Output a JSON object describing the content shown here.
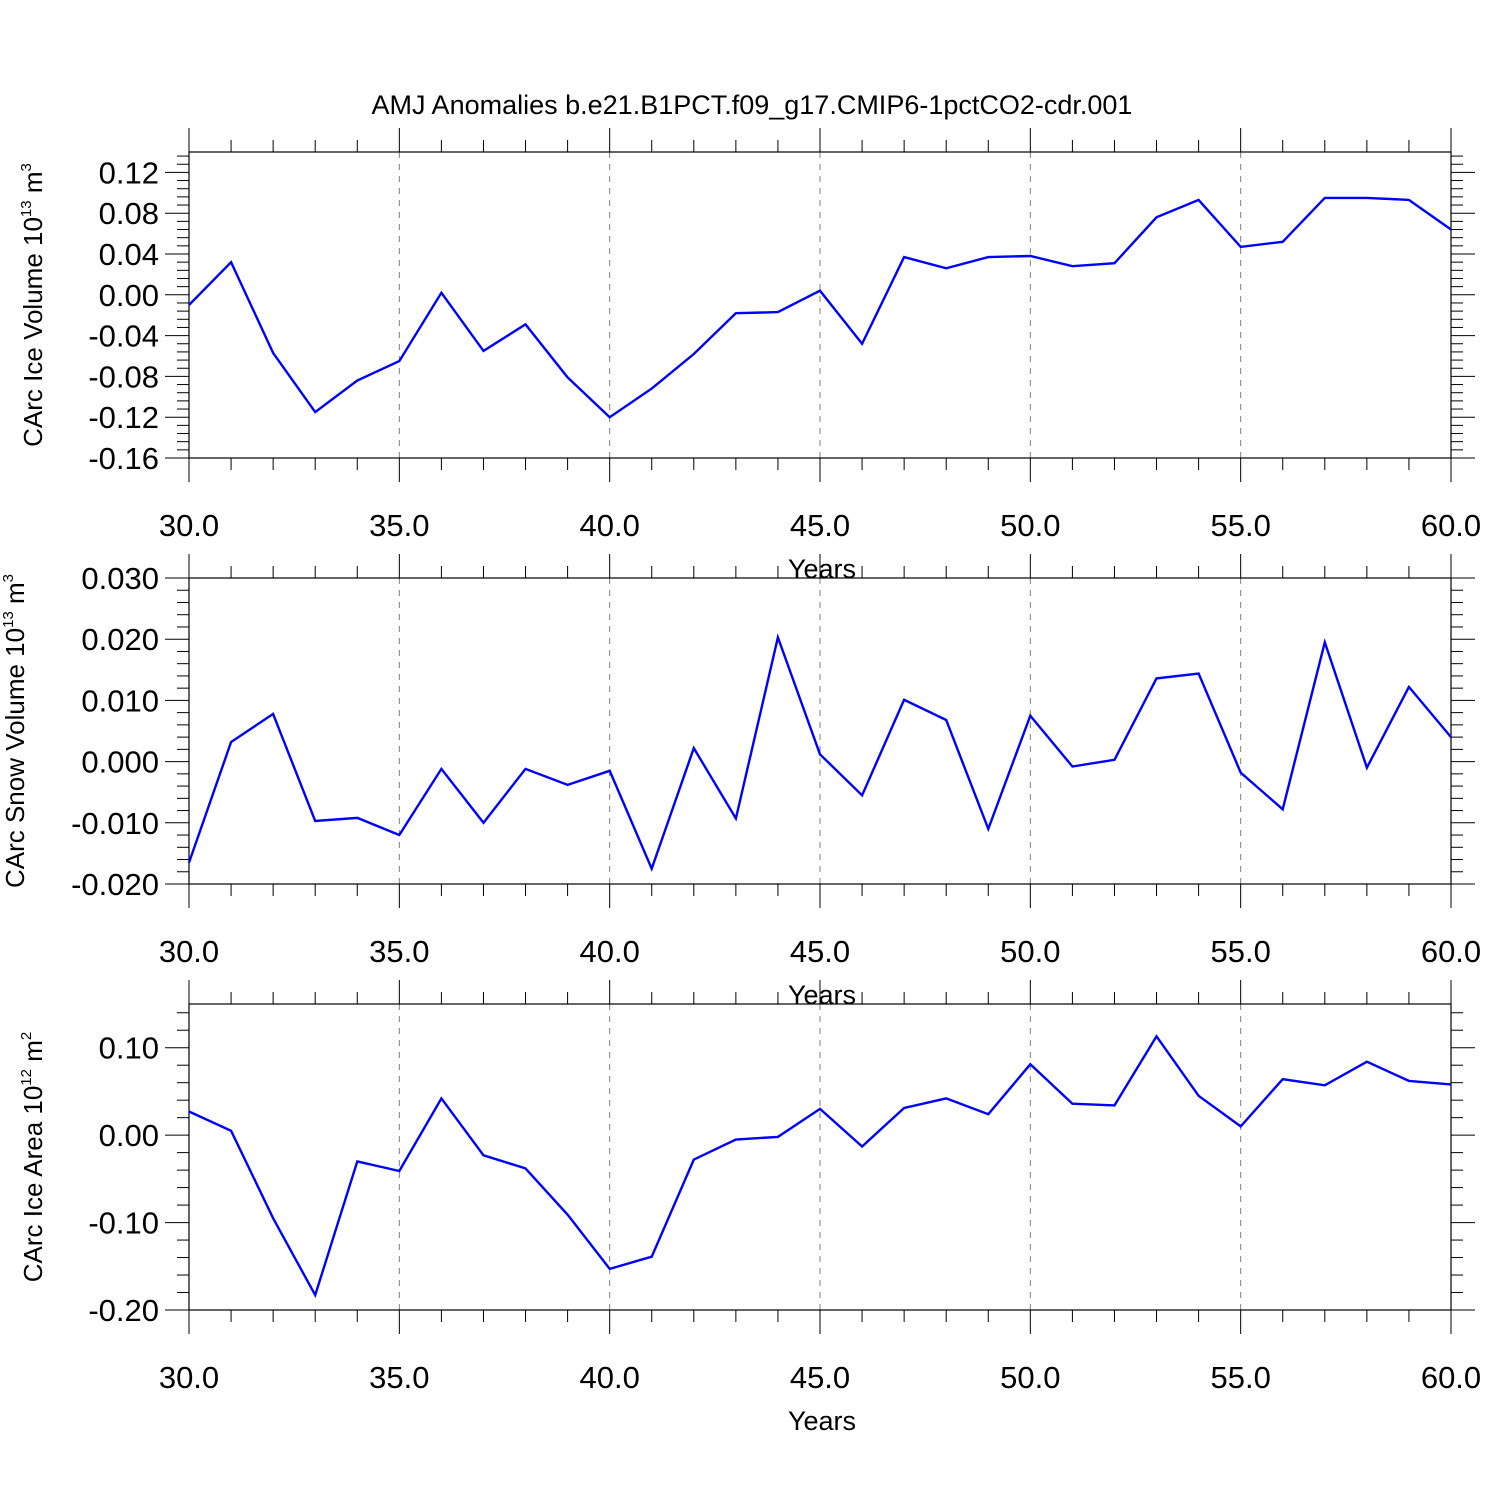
{
  "title": "AMJ Anomalies b.e21.B1PCT.f09_g17.CMIP6-1pctCO2-cdr.001",
  "series_color": "#0000ff",
  "chart_data": [
    {
      "type": "line",
      "ylabel": "CArc Ice Volume 10",
      "ylabel_sup": "13",
      "ylabel_unit": "m",
      "ylabel_unit_sup": "3",
      "xlabel": "Years",
      "xlim": [
        30,
        60
      ],
      "ylim": [
        -0.16,
        0.14
      ],
      "grid": "vertical dashed at major x ticks",
      "xticks": [
        30,
        35,
        40,
        45,
        50,
        55,
        60
      ],
      "xtick_labels": [
        "30.0",
        "35.0",
        "40.0",
        "45.0",
        "50.0",
        "55.0",
        "60.0"
      ],
      "yticks": [
        0.12,
        0.08,
        0.04,
        0.0,
        -0.04,
        -0.08,
        -0.12,
        -0.16
      ],
      "ytick_labels": [
        "0.12",
        "0.08",
        "0.04",
        "0.00",
        "-0.04",
        "-0.08",
        "-0.12",
        "-0.16"
      ],
      "x": [
        30,
        31,
        32,
        33,
        34,
        35,
        36,
        37,
        38,
        39,
        40,
        41,
        42,
        43,
        44,
        45,
        46,
        47,
        48,
        49,
        50,
        51,
        52,
        53,
        54,
        55,
        56,
        57,
        58,
        59,
        60
      ],
      "values": [
        -0.01,
        0.032,
        -0.057,
        -0.115,
        -0.084,
        -0.065,
        0.002,
        -0.055,
        -0.029,
        -0.081,
        -0.12,
        -0.092,
        -0.058,
        -0.018,
        -0.017,
        0.004,
        -0.048,
        0.037,
        0.026,
        0.037,
        0.038,
        0.028,
        0.031,
        0.076,
        0.093,
        0.047,
        0.052,
        0.095,
        0.095,
        0.093,
        0.064
      ]
    },
    {
      "type": "line",
      "ylabel": "CArc Snow Volume 10",
      "ylabel_sup": "13",
      "ylabel_unit": "m",
      "ylabel_unit_sup": "3",
      "xlabel": "Years",
      "xlim": [
        30,
        60
      ],
      "ylim": [
        -0.02,
        0.03
      ],
      "grid": "vertical dashed at major x ticks",
      "xticks": [
        30,
        35,
        40,
        45,
        50,
        55,
        60
      ],
      "xtick_labels": [
        "30.0",
        "35.0",
        "40.0",
        "45.0",
        "50.0",
        "55.0",
        "60.0"
      ],
      "yticks": [
        0.03,
        0.02,
        0.01,
        0.0,
        -0.01,
        -0.02
      ],
      "ytick_labels": [
        "0.030",
        "0.020",
        "0.010",
        "0.000",
        "-0.010",
        "-0.020"
      ],
      "x": [
        30,
        31,
        32,
        33,
        34,
        35,
        36,
        37,
        38,
        39,
        40,
        41,
        42,
        43,
        44,
        45,
        46,
        47,
        48,
        49,
        50,
        51,
        52,
        53,
        54,
        55,
        56,
        57,
        58,
        59,
        60
      ],
      "values": [
        -0.0165,
        0.0032,
        0.0078,
        -0.0097,
        -0.0092,
        -0.012,
        -0.0012,
        -0.01,
        -0.0012,
        -0.0038,
        -0.0015,
        -0.0175,
        0.0022,
        -0.0093,
        0.0203,
        0.0012,
        -0.0055,
        0.0101,
        0.0068,
        -0.011,
        0.0075,
        -0.0008,
        0.0003,
        0.0136,
        0.0144,
        -0.0018,
        -0.0078,
        0.0195,
        -0.001,
        0.0122,
        0.004
      ]
    },
    {
      "type": "line",
      "ylabel": "CArc Ice Area 10",
      "ylabel_sup": "12",
      "ylabel_unit": "m",
      "ylabel_unit_sup": "2",
      "xlabel": "Years",
      "xlim": [
        30,
        60
      ],
      "ylim": [
        -0.2,
        0.15
      ],
      "grid": "vertical dashed at major x ticks",
      "xticks": [
        30,
        35,
        40,
        45,
        50,
        55,
        60
      ],
      "xtick_labels": [
        "30.0",
        "35.0",
        "40.0",
        "45.0",
        "50.0",
        "55.0",
        "60.0"
      ],
      "yticks": [
        0.1,
        0.0,
        -0.1,
        -0.2
      ],
      "ytick_labels": [
        "0.10",
        "0.00",
        "-0.10",
        "-0.20"
      ],
      "x": [
        30,
        31,
        32,
        33,
        34,
        35,
        36,
        37,
        38,
        39,
        40,
        41,
        42,
        43,
        44,
        45,
        46,
        47,
        48,
        49,
        50,
        51,
        52,
        53,
        54,
        55,
        56,
        57,
        58,
        59,
        60
      ],
      "values": [
        0.027,
        0.005,
        -0.095,
        -0.183,
        -0.03,
        -0.041,
        0.042,
        -0.023,
        -0.038,
        -0.091,
        -0.153,
        -0.139,
        -0.028,
        -0.005,
        -0.002,
        0.03,
        -0.013,
        0.031,
        0.042,
        0.024,
        0.081,
        0.036,
        0.034,
        0.113,
        0.045,
        0.01,
        0.064,
        0.057,
        0.084,
        0.062,
        0.058
      ]
    }
  ]
}
